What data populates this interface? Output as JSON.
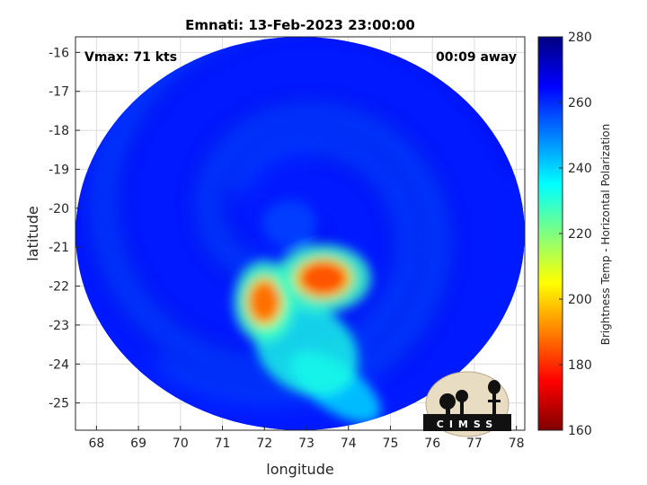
{
  "chart_data": {
    "type": "heatmap",
    "title": "Emnati: 13-Feb-2023 23:00:00",
    "xlabel": "longitude",
    "ylabel": "latitude",
    "xlim": [
      67.5,
      78.2
    ],
    "ylim": [
      -25.7,
      -15.6
    ],
    "x_ticks": [
      "68",
      "69",
      "70",
      "71",
      "72",
      "73",
      "74",
      "75",
      "76",
      "77",
      "78"
    ],
    "y_ticks": [
      "-16",
      "-17",
      "-18",
      "-19",
      "-20",
      "-21",
      "-22",
      "-23",
      "-24",
      "-25"
    ],
    "grid": true,
    "annotations": {
      "vmax": "Vmax: 71 kts",
      "away": "00:09 away"
    },
    "colorbar": {
      "label": "Brightness Temp - Horizontal Polarization",
      "range": [
        160,
        280
      ],
      "ticks": [
        "160",
        "180",
        "200",
        "220",
        "240",
        "260",
        "280"
      ],
      "colormap": "jet"
    },
    "swath": {
      "center_lon": 72.85,
      "center_lat": -20.65,
      "radius_lon": 5.35,
      "radius_lat": 5.05,
      "background_value": 262
    },
    "features": [
      {
        "name": "eye",
        "lon": 72.6,
        "lat": -20.4,
        "value": 258
      },
      {
        "name": "cold-cloud-east",
        "lon": 73.4,
        "lat": -21.8,
        "value": 185
      },
      {
        "name": "cold-cloud-west",
        "lon": 72.0,
        "lat": -22.4,
        "value": 188
      },
      {
        "name": "rainband-south",
        "lon": 73.0,
        "lat": -23.6,
        "value": 232
      },
      {
        "name": "rainband-tail",
        "lon": 73.7,
        "lat": -24.6,
        "value": 238
      }
    ],
    "logo_text": "CIMSS"
  }
}
